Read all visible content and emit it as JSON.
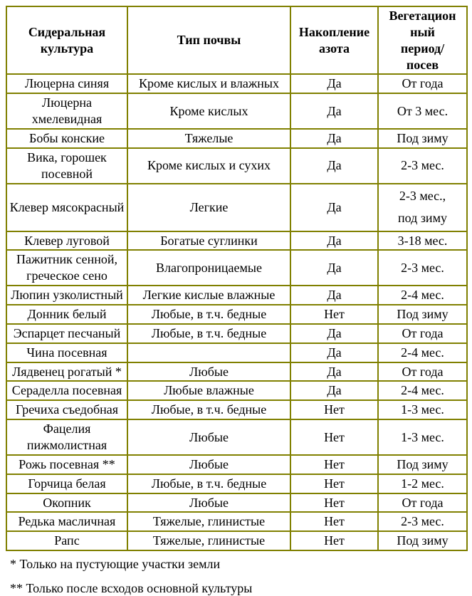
{
  "colors": {
    "table_border": "#808000",
    "text": "#000000"
  },
  "table": {
    "headers": [
      "Сидеральная культура",
      "Тип почвы",
      "Накопление азота",
      "Вегетацион\nный\nпериод/\nпосев"
    ],
    "rows": [
      {
        "crop": "Люцерна синяя",
        "soil": "Кроме кислых и влажных",
        "nitrogen": "Да",
        "period": "От года"
      },
      {
        "crop": "Люцерна хмелевидная",
        "soil": "Кроме кислых",
        "nitrogen": "Да",
        "period": "От 3 мес."
      },
      {
        "crop": "Бобы конские",
        "soil": "Тяжелые",
        "nitrogen": "Да",
        "period": "Под зиму"
      },
      {
        "crop": "Вика, горошек посевной",
        "soil": "Кроме кислых и сухих",
        "nitrogen": "Да",
        "period": "2-3 мес."
      },
      {
        "crop": "Клевер мясокрасный",
        "soil": "Легкие",
        "nitrogen": "Да",
        "period": "2-3 мес.,\nпод зиму"
      },
      {
        "crop": "Клевер луговой",
        "soil": "Богатые суглинки",
        "nitrogen": "Да",
        "period": "3-18 мес."
      },
      {
        "crop": "Пажитник сенной, греческое сено",
        "soil": "Влагопроницаемые",
        "nitrogen": "Да",
        "period": "2-3 мес."
      },
      {
        "crop": "Люпин узколистный",
        "soil": "Легкие кислые влажные",
        "nitrogen": "Да",
        "period": "2-4 мес."
      },
      {
        "crop": "Донник белый",
        "soil": "Любые, в т.ч. бедные",
        "nitrogen": "Нет",
        "period": "Под зиму"
      },
      {
        "crop": "Эспарцет песчаный",
        "soil": "Любые, в т.ч. бедные",
        "nitrogen": "Да",
        "period": "От года"
      },
      {
        "crop": "Чина посевная",
        "soil": "",
        "nitrogen": "Да",
        "period": "2-4 мес."
      },
      {
        "crop": "Лядвенец рогатый *",
        "soil": "Любые",
        "nitrogen": "Да",
        "period": "От года"
      },
      {
        "crop": "Сераделла посевная",
        "soil": "Любые влажные",
        "nitrogen": "Да",
        "period": "2-4 мес."
      },
      {
        "crop": "Гречиха съедобная",
        "soil": "Любые, в т.ч. бедные",
        "nitrogen": "Нет",
        "period": "1-3 мес."
      },
      {
        "crop": "Фацелия пижмолистная",
        "soil": "Любые",
        "nitrogen": "Нет",
        "period": "1-3 мес."
      },
      {
        "crop": "Рожь посевная **",
        "soil": "Любые",
        "nitrogen": "Нет",
        "period": "Под зиму"
      },
      {
        "crop": "Горчица белая",
        "soil": "Любые, в т.ч. бедные",
        "nitrogen": "Нет",
        "period": "1-2 мес."
      },
      {
        "crop": "Окопник",
        "soil": "Любые",
        "nitrogen": "Нет",
        "period": "От года"
      },
      {
        "crop": "Редька масличная",
        "soil": "Тяжелые, глинистые",
        "nitrogen": "Нет",
        "period": "2-3 мес."
      },
      {
        "crop": "Рапс",
        "soil": "Тяжелые, глинистые",
        "nitrogen": "Нет",
        "period": "Под зиму"
      }
    ],
    "footnotes": [
      "* Только на пустующие участки земли",
      "** Только после всходов основной культуры"
    ]
  }
}
